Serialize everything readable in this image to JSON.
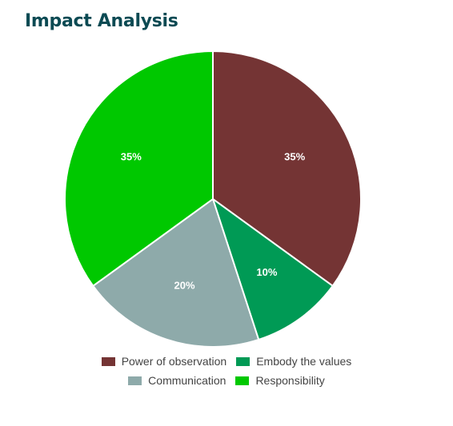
{
  "header": {
    "title": "Impact Analysis"
  },
  "chart_data": {
    "type": "pie",
    "title": "Impact Analysis",
    "slices": [
      {
        "label": "Power of observation",
        "value": 35,
        "display": "35%",
        "color": "#743434"
      },
      {
        "label": "Embody the values",
        "value": 10,
        "display": "10%",
        "color": "#009a55"
      },
      {
        "label": "Communication",
        "value": 20,
        "display": "20%",
        "color": "#8eaaaa"
      },
      {
        "label": "Responsibility",
        "value": 35,
        "display": "35%",
        "color": "#00c800"
      }
    ],
    "legend_position": "bottom",
    "label_color": "#ffffff"
  }
}
